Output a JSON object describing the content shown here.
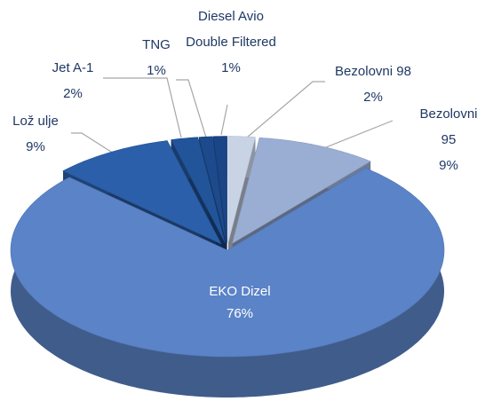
{
  "chart_data": {
    "type": "pie3d",
    "categories": [
      "Bezolovni 98",
      "Bezolovni 95",
      "EKO Dizel",
      "Lož ulje",
      "Jet A-1",
      "TNG",
      "Diesel Avio Double Filtered"
    ],
    "values": [
      2,
      9,
      76,
      9,
      2,
      1,
      1
    ],
    "value_labels": [
      "2%",
      "9%",
      "76%",
      "9%",
      "2%",
      "1%",
      "1%"
    ],
    "colors": [
      "#c9d3e6",
      "#9aaed4",
      "#5b83c7",
      "#2b5fa9",
      "#22549a",
      "#1d4a8c",
      "#1a4586"
    ]
  }
}
